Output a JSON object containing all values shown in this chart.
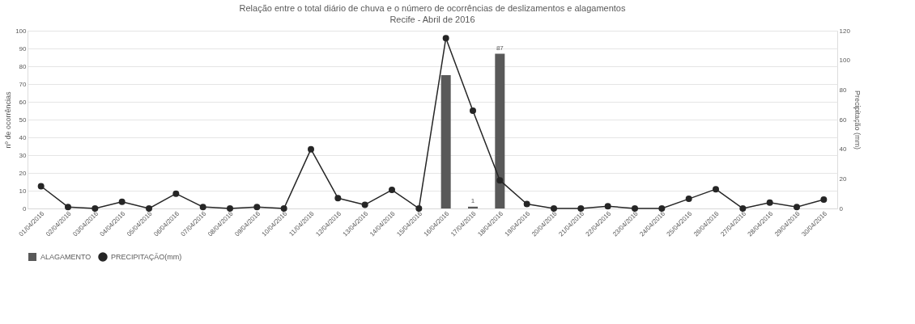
{
  "chart_data": {
    "type": "bar",
    "title": "Relação entre o total diário de chuva e o número de ocorrências de deslizamentos e alagamentos",
    "subtitle": "Recife - Abril de 2016",
    "ylabel": "nº de ocorrências",
    "y2label": "Precipitação (mm)",
    "categories": [
      "01/04/2016",
      "02/04/2016",
      "03/04/2016",
      "04/04/2016",
      "05/04/2016",
      "06/04/2016",
      "07/04/2016",
      "08/04/2016",
      "09/04/2016",
      "10/04/2016",
      "11/04/2016",
      "12/04/2016",
      "13/04/2016",
      "14/04/2016",
      "15/04/2016",
      "16/04/2016",
      "17/04/2016",
      "18/04/2016",
      "19/04/2016",
      "20/04/2016",
      "21/04/2016",
      "22/04/2016",
      "23/04/2016",
      "24/04/2016",
      "25/04/2016",
      "26/04/2016",
      "27/04/2016",
      "28/04/2016",
      "29/04/2016",
      "30/04/2016"
    ],
    "series": [
      {
        "name": "ALAGAMENTO",
        "color": "#595959",
        "values": [
          0,
          0,
          0,
          0,
          0,
          0,
          0,
          0,
          0,
          0,
          0,
          0,
          0,
          0,
          0,
          75,
          1,
          87,
          0,
          0,
          0,
          0,
          0,
          0,
          0,
          0,
          0,
          0,
          0,
          0
        ],
        "value_labels": [
          null,
          null,
          null,
          null,
          null,
          null,
          null,
          null,
          null,
          null,
          null,
          null,
          null,
          null,
          null,
          null,
          "1",
          "87",
          null,
          null,
          null,
          null,
          null,
          null,
          null,
          null,
          null,
          null,
          null,
          null
        ]
      },
      {
        "name": "PRECIPITAÇÃO(mm)",
        "type": "line",
        "axis": "y2",
        "color": "#262626",
        "values": [
          15,
          1,
          0,
          4.5,
          0,
          10,
          1,
          0,
          1,
          0,
          40,
          7,
          2.5,
          12.5,
          0,
          115,
          66,
          19,
          3,
          0,
          0,
          1.5,
          0,
          0,
          6.5,
          13,
          0,
          4,
          1,
          6
        ]
      }
    ],
    "ylim": [
      0,
      100
    ],
    "yticks": [
      0,
      10,
      20,
      30,
      40,
      50,
      60,
      70,
      80,
      90,
      100
    ],
    "y2lim": [
      0,
      120
    ],
    "y2ticks": [
      0,
      20,
      40,
      60,
      80,
      100,
      120
    ],
    "grid": "y",
    "legend": "bottom",
    "marker": "circle"
  }
}
